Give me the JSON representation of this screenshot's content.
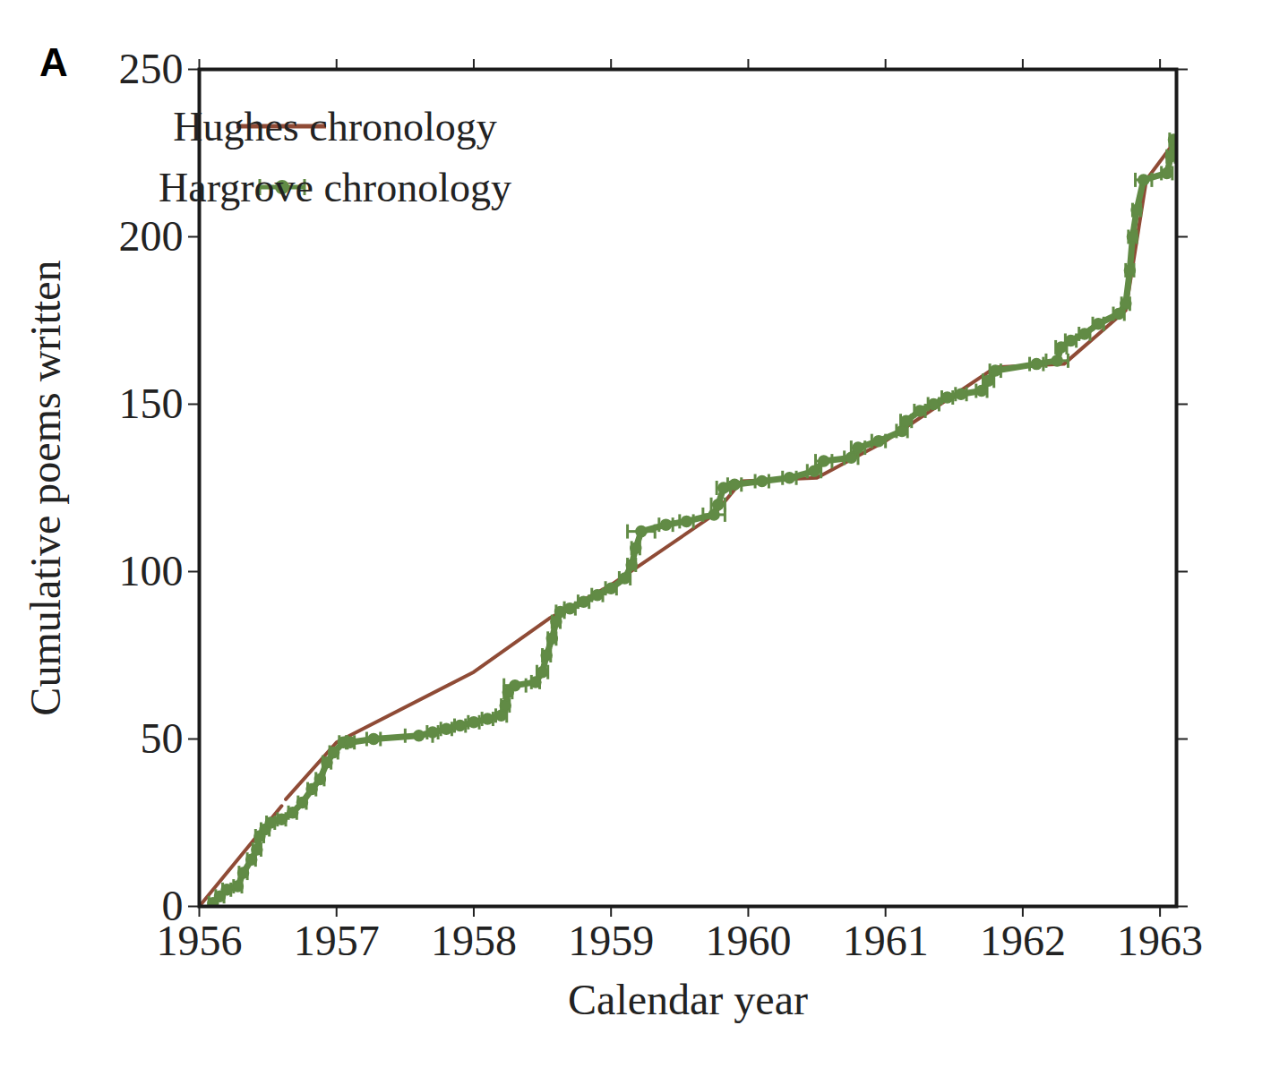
{
  "chart_data": {
    "type": "line",
    "panel_label": "A",
    "x_label": "Calendar year",
    "y_label": "Cumulative poems written",
    "xlim": [
      1956,
      1963.12
    ],
    "xticks": [
      1956,
      1957,
      1958,
      1959,
      1960,
      1961,
      1962,
      1963
    ],
    "ylim": [
      0,
      250
    ],
    "yticks": [
      0,
      50,
      100,
      150,
      200,
      250
    ],
    "grid": false,
    "legend": "upper left",
    "series": [
      {
        "name": "Hughes chronology",
        "color": "#8f4b36",
        "marker": "none",
        "line_style": "solid",
        "x": [
          1956.0,
          1956.6,
          1956.62,
          1956.63,
          1957.0,
          1958.0,
          1958.55,
          1959.0,
          1959.75,
          1959.95,
          1960.5,
          1961.0,
          1961.8,
          1962.3,
          1962.75,
          1962.9,
          1963.1
        ],
        "values": [
          0,
          30,
          null,
          32,
          49,
          70,
          86,
          96,
          117,
          127,
          128,
          139,
          161,
          162,
          178,
          217,
          228
        ]
      },
      {
        "name": "Hargrove chronology",
        "color": "#618b45",
        "marker": "o",
        "line_style": "solid",
        "x": [
          1956.1,
          1956.15,
          1956.2,
          1956.28,
          1956.32,
          1956.38,
          1956.42,
          1956.44,
          1956.48,
          1956.52,
          1956.6,
          1956.68,
          1956.75,
          1956.82,
          1956.88,
          1956.93,
          1956.98,
          1957.05,
          1957.1,
          1957.27,
          1957.6,
          1957.7,
          1957.8,
          1957.9,
          1958.0,
          1958.1,
          1958.2,
          1958.23,
          1958.25,
          1958.3,
          1958.45,
          1958.5,
          1958.53,
          1958.57,
          1958.6,
          1958.63,
          1958.7,
          1958.8,
          1958.9,
          1959.0,
          1959.1,
          1959.15,
          1959.18,
          1959.22,
          1959.4,
          1959.55,
          1959.75,
          1959.78,
          1959.82,
          1959.9,
          1960.1,
          1960.3,
          1960.48,
          1960.55,
          1960.75,
          1960.8,
          1960.95,
          1961.12,
          1961.15,
          1961.25,
          1961.35,
          1961.45,
          1961.55,
          1961.7,
          1961.75,
          1961.8,
          1962.1,
          1962.25,
          1962.28,
          1962.35,
          1962.45,
          1962.55,
          1962.7,
          1962.75,
          1962.78,
          1962.8,
          1962.83,
          1962.88,
          1963.05,
          1963.08,
          1963.1
        ],
        "values": [
          1,
          3,
          5,
          6,
          10,
          14,
          17,
          21,
          23,
          25,
          26,
          28,
          31,
          35,
          38,
          43,
          46,
          49,
          49,
          50,
          51,
          52,
          53,
          54,
          55,
          56,
          57,
          60,
          64,
          66,
          67,
          70,
          75,
          80,
          85,
          88,
          89,
          91,
          93,
          95,
          98,
          102,
          107,
          112,
          114,
          115,
          117,
          120,
          125,
          126,
          127,
          128,
          130,
          133,
          134,
          137,
          139,
          142,
          145,
          148,
          150,
          152,
          153,
          154,
          157,
          160,
          162,
          163,
          167,
          169,
          171,
          174,
          177,
          180,
          190,
          200,
          208,
          217,
          219,
          224,
          229
        ],
        "x_err": [
          0.03,
          0.03,
          0.03,
          0.03,
          0.03,
          0.03,
          0.03,
          0.03,
          0.03,
          0.03,
          0.03,
          0.03,
          0.03,
          0.03,
          0.03,
          0.03,
          0.03,
          0.03,
          0.03,
          0.05,
          0.1,
          0.04,
          0.04,
          0.04,
          0.04,
          0.04,
          0.04,
          0.03,
          0.03,
          0.08,
          0.03,
          0.04,
          0.03,
          0.03,
          0.03,
          0.03,
          0.04,
          0.04,
          0.04,
          0.04,
          0.04,
          0.03,
          0.03,
          0.1,
          0.05,
          0.05,
          0.08,
          0.05,
          0.05,
          0.05,
          0.05,
          0.05,
          0.05,
          0.06,
          0.05,
          0.05,
          0.05,
          0.04,
          0.04,
          0.04,
          0.04,
          0.04,
          0.04,
          0.04,
          0.04,
          0.04,
          0.05,
          0.08,
          0.04,
          0.04,
          0.04,
          0.04,
          0.04,
          0.03,
          0.03,
          0.03,
          0.03,
          0.06,
          0.04,
          0.03,
          0.03
        ]
      }
    ]
  }
}
